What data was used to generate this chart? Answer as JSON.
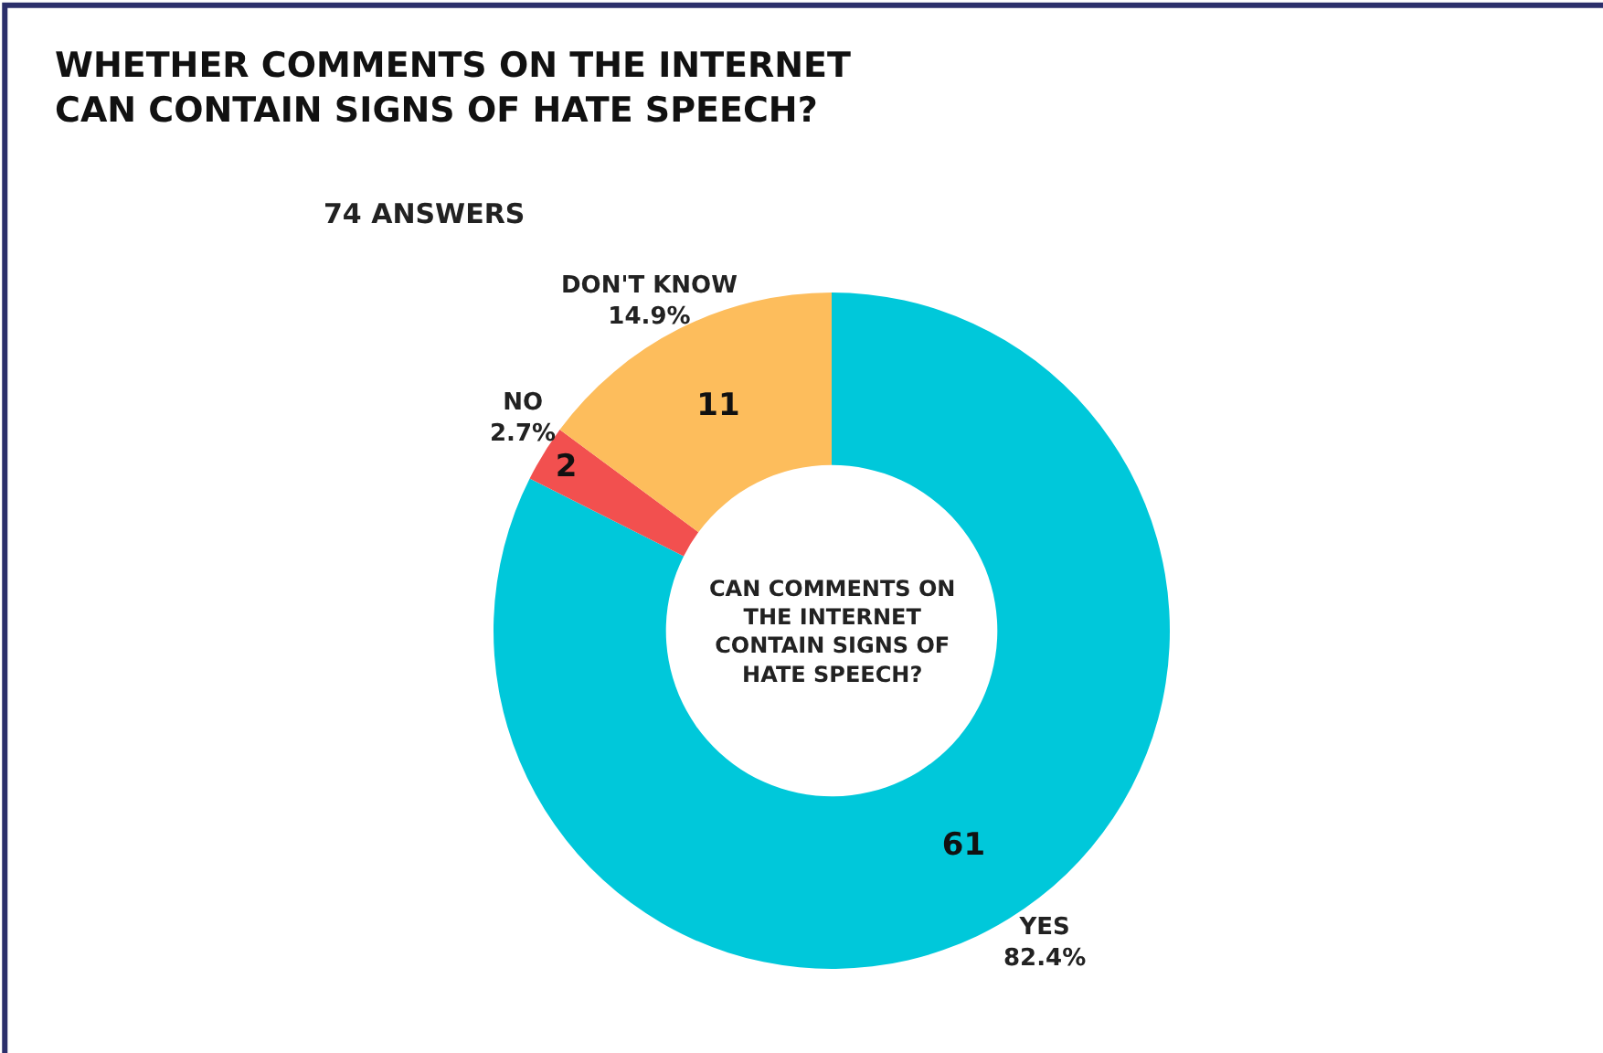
{
  "chart_data": {
    "type": "donut",
    "title": "WHETHER COMMENTS ON THE INTERNET\nCAN CONTAIN SIGNS OF HATE SPEECH?",
    "subtitle": "74 ANSWERS",
    "categories": [
      "YES\n82.4%",
      "NO\n2.7%",
      "DON'T KNOW\n14.9%"
    ],
    "values": [
      61,
      2,
      11
    ],
    "colors": [
      "#00c8da",
      "#f2504f",
      "#fdbd5c"
    ],
    "data_labels": true,
    "annotations": [
      "CAN COMMENTS ON\nTHE INTERNET\nCONTAIN SIGNS OF\nHATE SPEECH?"
    ],
    "legend": false
  }
}
